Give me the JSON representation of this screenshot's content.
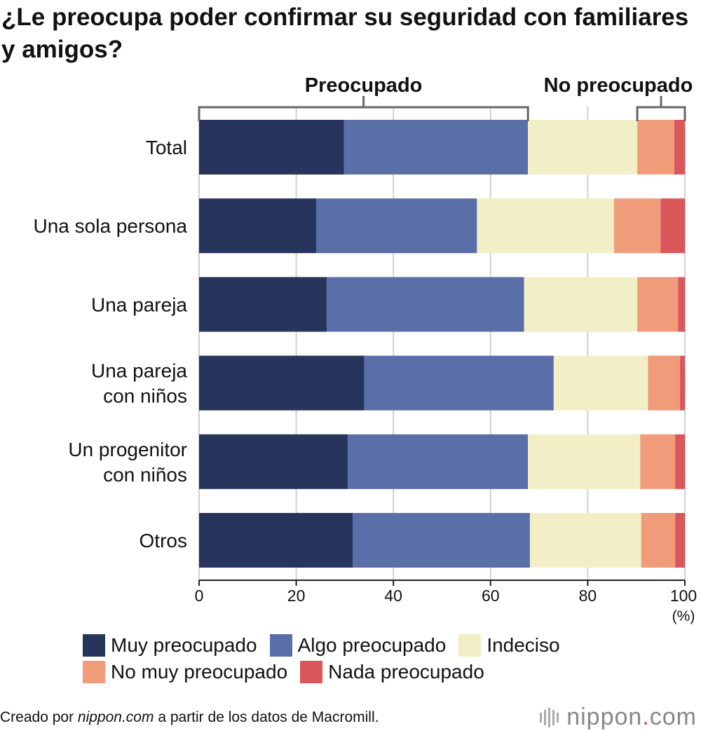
{
  "title": "¿Le preocupa poder confirmar su seguridad con familiares y amigos?",
  "bracket_labels": {
    "worried": "Preocupado",
    "not_worried": "No preocupado"
  },
  "unit": "(%)",
  "footer": {
    "prefix": "Creado por ",
    "site": "nippon.com",
    "suffix": " a partir de los datos de Macromill."
  },
  "brand": {
    "name": "nippon",
    "dot": ".",
    "tld": "com"
  },
  "chart_data": {
    "type": "bar",
    "orientation": "horizontal",
    "stacked": true,
    "categories": [
      [
        "Total"
      ],
      [
        "Una sola persona"
      ],
      [
        "Una pareja"
      ],
      [
        "Una pareja",
        "con niños"
      ],
      [
        "Un progenitor",
        "con niños"
      ],
      [
        "Otros"
      ]
    ],
    "series": [
      {
        "name": "Muy preocupado",
        "color": "#27345b",
        "values": [
          29.8,
          24.1,
          26.3,
          34.0,
          30.6,
          31.6
        ]
      },
      {
        "name": "Algo preocupado",
        "color": "#5a6ea8",
        "values": [
          37.9,
          33.1,
          40.6,
          39.0,
          37.1,
          36.5
        ]
      },
      {
        "name": "Indeciso",
        "color": "#f2efc7",
        "values": [
          22.5,
          28.2,
          23.3,
          19.4,
          23.1,
          22.9
        ]
      },
      {
        "name": "No muy preocupado",
        "color": "#f09c7b",
        "values": [
          7.6,
          9.6,
          8.4,
          6.6,
          7.2,
          7.0
        ]
      },
      {
        "name": "Nada preocupado",
        "color": "#d9575a",
        "values": [
          2.2,
          5.0,
          1.4,
          1.0,
          2.0,
          2.0
        ]
      }
    ],
    "xlim": [
      0,
      100
    ],
    "xticks": [
      0,
      20,
      40,
      60,
      80,
      100
    ],
    "grid": true,
    "legend_position": "bottom",
    "brackets": [
      {
        "label_key": "worried",
        "from": 0,
        "to": 67.7
      },
      {
        "label_key": "not_worried",
        "from": 90.2,
        "to": 100
      }
    ]
  }
}
